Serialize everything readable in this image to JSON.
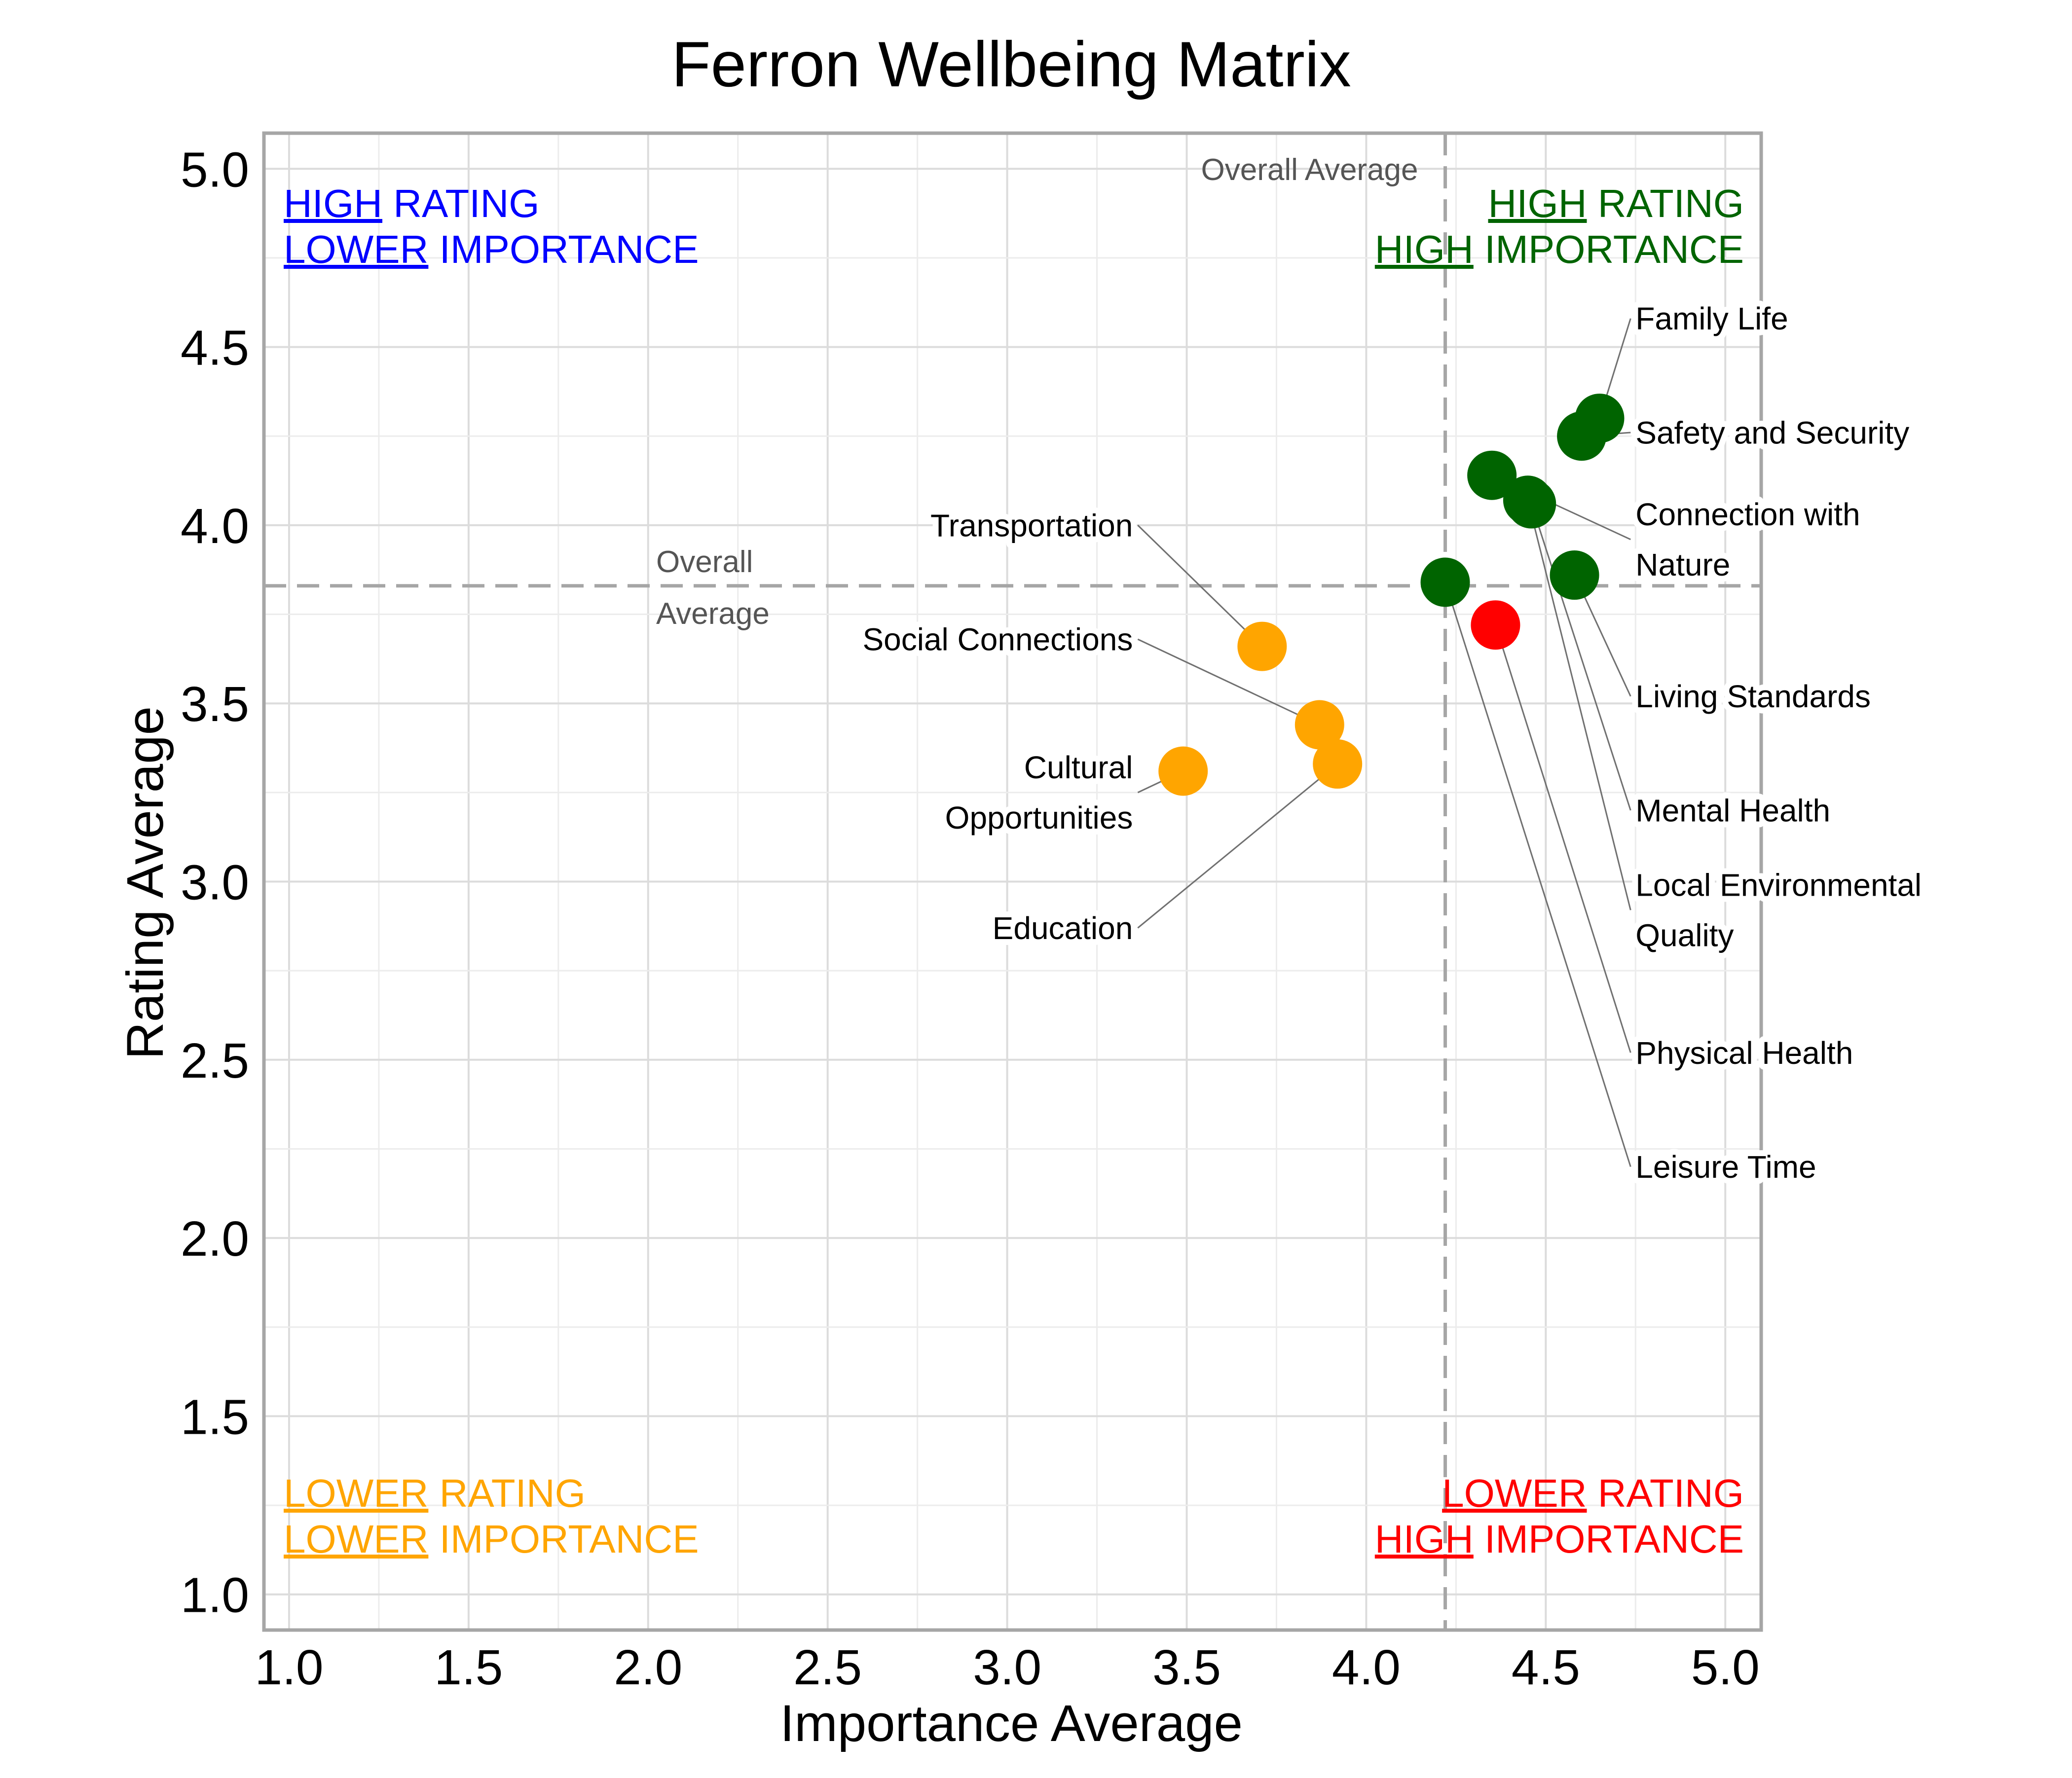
{
  "chart_data": {
    "type": "scatter",
    "title": "Ferron Wellbeing Matrix",
    "xlabel": "Importance Average",
    "ylabel": "Rating Average",
    "xlim": [
      0.93,
      5.1
    ],
    "ylim": [
      0.9,
      5.1
    ],
    "xticks": [
      1.0,
      1.5,
      2.0,
      2.5,
      3.0,
      3.5,
      4.0,
      4.5,
      5.0
    ],
    "yticks": [
      1.0,
      1.5,
      2.0,
      2.5,
      3.0,
      3.5,
      4.0,
      4.5,
      5.0
    ],
    "tick_labels_x": [
      "1.0",
      "1.5",
      "2.0",
      "2.5",
      "3.0",
      "3.5",
      "4.0",
      "4.5",
      "5.0"
    ],
    "tick_labels_y": [
      "1.0",
      "1.5",
      "2.0",
      "2.5",
      "3.0",
      "3.5",
      "4.0",
      "4.5",
      "5.0"
    ],
    "grid": true,
    "overall_average": {
      "x": 4.22,
      "y": 3.83
    },
    "reference_line_labels": {
      "vertical": "Overall Average",
      "horizontal": [
        "Overall",
        "Average"
      ]
    },
    "quadrants": [
      {
        "id": "top-left",
        "color": "#0000ff",
        "line1": [
          "HIGH",
          " RATING"
        ],
        "line2": [
          "LOWER",
          " IMPORTANCE"
        ]
      },
      {
        "id": "top-right",
        "color": "#006400",
        "line1": [
          "HIGH",
          " RATING"
        ],
        "line2": [
          "HIGH",
          " IMPORTANCE"
        ]
      },
      {
        "id": "bottom-left",
        "color": "#ffa500",
        "line1": [
          "LOWER",
          " RATING"
        ],
        "line2": [
          "LOWER",
          " IMPORTANCE"
        ]
      },
      {
        "id": "bottom-right",
        "color": "#ff0000",
        "line1": [
          "LOWER",
          " RATING"
        ],
        "line2": [
          "HIGH",
          " IMPORTANCE"
        ]
      }
    ],
    "colors": {
      "high_high": "#006400",
      "low_low": "#ffa500",
      "low_high": "#ff0000"
    },
    "points": [
      {
        "label": [
          "Family Life"
        ],
        "x": 4.65,
        "y": 4.3,
        "color": "#006400",
        "label_x": 4.75,
        "label_y": 4.58,
        "side": "right"
      },
      {
        "label": [
          "Safety and Security"
        ],
        "x": 4.6,
        "y": 4.25,
        "color": "#006400",
        "label_x": 4.75,
        "label_y": 4.26,
        "side": "right"
      },
      {
        "label": [
          "Connection with",
          "Nature"
        ],
        "x": 4.35,
        "y": 4.14,
        "color": "#006400",
        "label_x": 4.75,
        "label_y": 3.96,
        "side": "right"
      },
      {
        "label": [
          "Living Standards"
        ],
        "x": 4.58,
        "y": 3.86,
        "color": "#006400",
        "label_x": 4.75,
        "label_y": 3.52,
        "side": "right"
      },
      {
        "label": [
          "Mental Health"
        ],
        "x": 4.46,
        "y": 4.06,
        "color": "#006400",
        "label_x": 4.75,
        "label_y": 3.2,
        "side": "right"
      },
      {
        "label": [
          "Local Environmental",
          "Quality"
        ],
        "x": 4.45,
        "y": 4.07,
        "color": "#006400",
        "label_x": 4.75,
        "label_y": 2.92,
        "side": "right"
      },
      {
        "label": [
          "Physical Health"
        ],
        "x": 4.36,
        "y": 3.72,
        "color": "#ff0000",
        "label_x": 4.75,
        "label_y": 2.52,
        "side": "right"
      },
      {
        "label": [
          "Leisure Time"
        ],
        "x": 4.22,
        "y": 3.84,
        "color": "#006400",
        "label_x": 4.75,
        "label_y": 2.2,
        "side": "right"
      },
      {
        "label": [
          "Transportation"
        ],
        "x": 3.71,
        "y": 3.66,
        "color": "#ffa500",
        "label_x": 3.35,
        "label_y": 4.0,
        "side": "left"
      },
      {
        "label": [
          "Social Connections"
        ],
        "x": 3.87,
        "y": 3.44,
        "color": "#ffa500",
        "label_x": 3.35,
        "label_y": 3.68,
        "side": "left"
      },
      {
        "label": [
          "Cultural",
          "Opportunities"
        ],
        "x": 3.49,
        "y": 3.31,
        "color": "#ffa500",
        "label_x": 3.35,
        "label_y": 3.25,
        "side": "left"
      },
      {
        "label": [
          "Education"
        ],
        "x": 3.92,
        "y": 3.33,
        "color": "#ffa500",
        "label_x": 3.35,
        "label_y": 2.87,
        "side": "left"
      }
    ]
  }
}
